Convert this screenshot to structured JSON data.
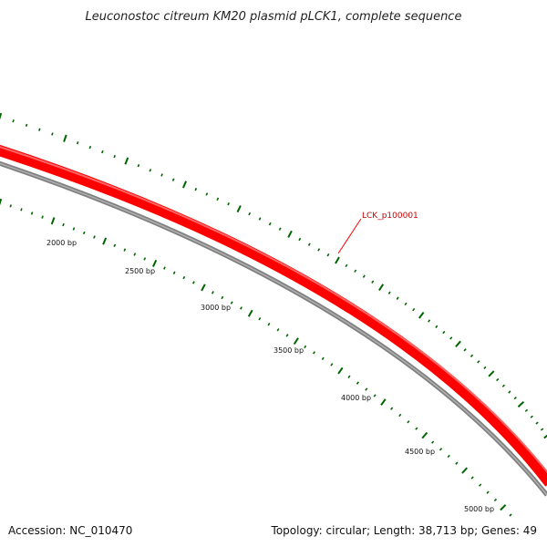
{
  "title": "Leuconostoc citreum KM20 plasmid pLCK1, complete sequence",
  "accession": "Accession: NC_010470",
  "summary": "Topology: circular; Length: 38,713 bp; Genes: 49",
  "gene": {
    "label": "LCK_p100001",
    "color": "#ff0000"
  },
  "colors": {
    "backbone": "#808080",
    "ticks": "#006400",
    "gene": "#ff0000"
  },
  "scale_labels": [
    "2000 bp",
    "2500 bp",
    "3000 bp",
    "3500 bp",
    "4000 bp",
    "4500 bp",
    "5000 bp"
  ]
}
